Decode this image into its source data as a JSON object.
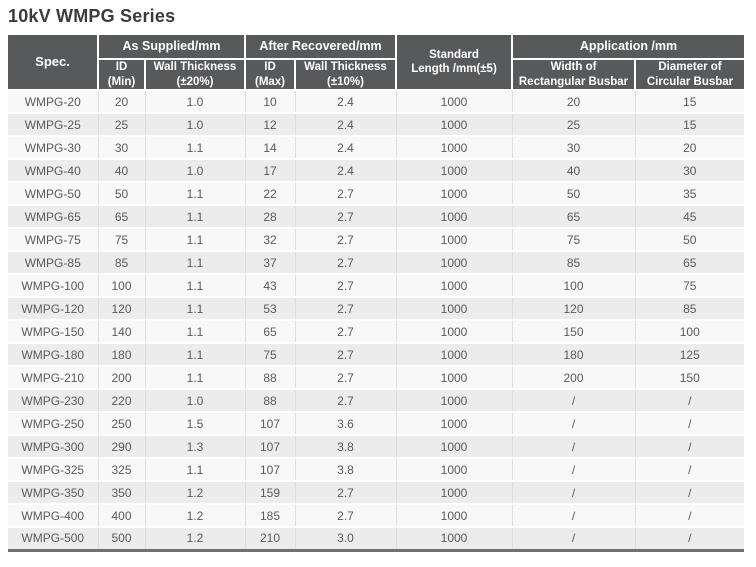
{
  "title": "10kV WMPG Series",
  "table": {
    "header": {
      "spec": "Spec.",
      "group_as_supplied": "As Supplied/mm",
      "group_after_recovered": "After Recovered/mm",
      "standard_length": "Standard\nLength /mm(±5)",
      "group_application": "Application /mm",
      "sub_id_min": "ID\n(Min)",
      "sub_wall_thickness_20": "Wall Thickness\n(±20%)",
      "sub_id_max": "ID\n(Max)",
      "sub_wall_thickness_10": "Wall Thickness\n(±10%)",
      "sub_width_rectangular": "Width of\nRectangular Busbar",
      "sub_diameter_circular": "Diameter of\nCircular Busbar"
    },
    "column_keys": [
      "spec",
      "id_min",
      "wall_thickness_20",
      "id_max",
      "wall_thickness_10",
      "standard_length",
      "width_rectangular_busbar",
      "diameter_circular_busbar"
    ],
    "rows": [
      [
        "WMPG-20",
        "20",
        "1.0",
        "10",
        "2.4",
        "1000",
        "20",
        "15"
      ],
      [
        "WMPG-25",
        "25",
        "1.0",
        "12",
        "2.4",
        "1000",
        "25",
        "15"
      ],
      [
        "WMPG-30",
        "30",
        "1.1",
        "14",
        "2.4",
        "1000",
        "30",
        "20"
      ],
      [
        "WMPG-40",
        "40",
        "1.0",
        "17",
        "2.4",
        "1000",
        "40",
        "30"
      ],
      [
        "WMPG-50",
        "50",
        "1.1",
        "22",
        "2.7",
        "1000",
        "50",
        "35"
      ],
      [
        "WMPG-65",
        "65",
        "1.1",
        "28",
        "2.7",
        "1000",
        "65",
        "45"
      ],
      [
        "WMPG-75",
        "75",
        "1.1",
        "32",
        "2.7",
        "1000",
        "75",
        "50"
      ],
      [
        "WMPG-85",
        "85",
        "1.1",
        "37",
        "2.7",
        "1000",
        "85",
        "65"
      ],
      [
        "WMPG-100",
        "100",
        "1.1",
        "43",
        "2.7",
        "1000",
        "100",
        "75"
      ],
      [
        "WMPG-120",
        "120",
        "1.1",
        "53",
        "2.7",
        "1000",
        "120",
        "85"
      ],
      [
        "WMPG-150",
        "140",
        "1.1",
        "65",
        "2.7",
        "1000",
        "150",
        "100"
      ],
      [
        "WMPG-180",
        "180",
        "1.1",
        "75",
        "2.7",
        "1000",
        "180",
        "125"
      ],
      [
        "WMPG-210",
        "200",
        "1.1",
        "88",
        "2.7",
        "1000",
        "200",
        "150"
      ],
      [
        "WMPG-230",
        "220",
        "1.0",
        "88",
        "2.7",
        "1000",
        "/",
        "/"
      ],
      [
        "WMPG-250",
        "250",
        "1.5",
        "107",
        "3.6",
        "1000",
        "/",
        "/"
      ],
      [
        "WMPG-300",
        "290",
        "1.3",
        "107",
        "3.8",
        "1000",
        "/",
        "/"
      ],
      [
        "WMPG-325",
        "325",
        "1.1",
        "107",
        "3.8",
        "1000",
        "/",
        "/"
      ],
      [
        "WMPG-350",
        "350",
        "1.2",
        "159",
        "2.7",
        "1000",
        "/",
        "/"
      ],
      [
        "WMPG-400",
        "400",
        "1.2",
        "185",
        "2.7",
        "1000",
        "/",
        "/"
      ],
      [
        "WMPG-500",
        "500",
        "1.2",
        "210",
        "3.0",
        "1000",
        "/",
        "/"
      ]
    ]
  },
  "colors": {
    "header_bg": "#58595b",
    "header_text": "#ffffff",
    "row_odd_bg": "#f8f8f8",
    "row_even_bg": "#ececec",
    "cell_text": "#595a5c",
    "title_text": "#3e3a39",
    "table_bottom_border": "#6d6e70"
  }
}
